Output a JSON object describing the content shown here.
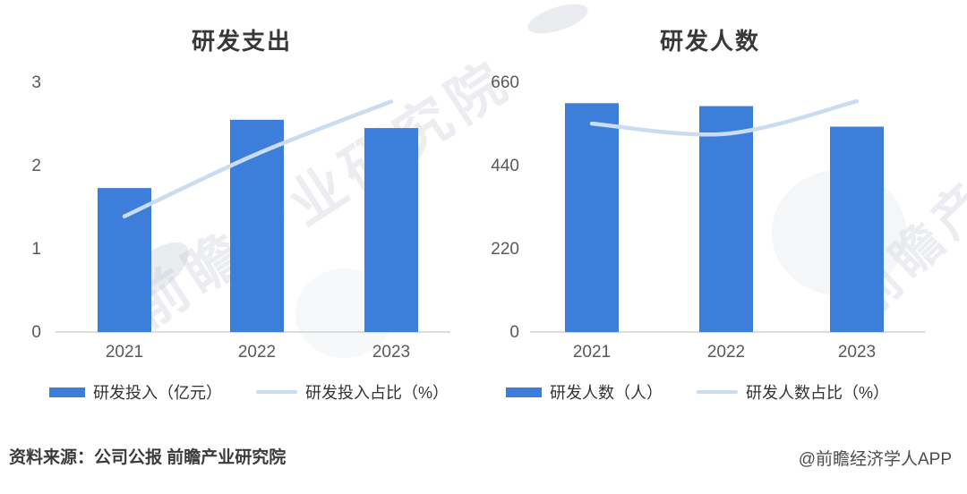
{
  "colors": {
    "bar": "#3e7edb",
    "line": "#c9dcf2",
    "axis_line": "#d2d2d2",
    "tick_text": "#595959",
    "title_text": "#383838",
    "watermark": "#c4c8d0"
  },
  "chart_data": [
    {
      "type": "bar",
      "title": "研发支出",
      "categories": [
        "2021",
        "2022",
        "2023"
      ],
      "y_ticks": [
        0,
        1,
        2,
        3
      ],
      "ylim": [
        0,
        3
      ],
      "grid": false,
      "legend_position": "bottom",
      "bar_series": {
        "name": "研发投入（亿元）",
        "values": [
          1.73,
          2.55,
          2.45
        ]
      },
      "line_series": {
        "name": "研发投入占比（%）",
        "note": "secondary percent axis not shown in image; values estimated against primary axis scale",
        "axis_equiv_values": [
          1.39,
          2.14,
          2.77
        ]
      }
    },
    {
      "type": "bar",
      "title": "研发人数",
      "categories": [
        "2021",
        "2022",
        "2023"
      ],
      "y_ticks": [
        0,
        220,
        440,
        660
      ],
      "ylim": [
        0,
        660
      ],
      "grid": false,
      "legend_position": "bottom",
      "bar_series": {
        "name": "研发人数（人）",
        "values": [
          605,
          597,
          543
        ]
      },
      "line_series": {
        "name": "研发人数占比（%）",
        "note": "secondary percent axis not shown in image; values estimated against primary axis scale",
        "axis_equiv_values": [
          551,
          524,
          610
        ]
      }
    }
  ],
  "footer": {
    "source": "资料来源：公司公报 前瞻产业研究院",
    "attribution": "@前瞻经济学人APP"
  },
  "watermark": {
    "text": "前瞻产业研究院"
  }
}
